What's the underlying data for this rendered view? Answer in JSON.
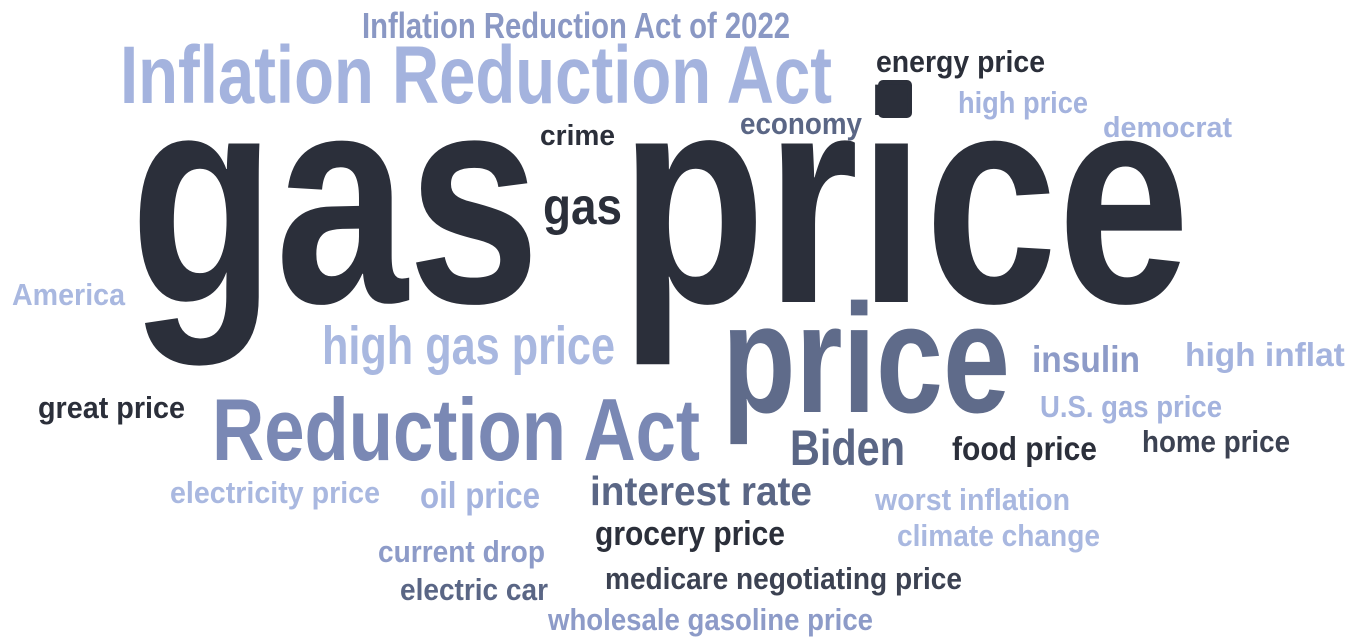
{
  "words": [
    {
      "text": "Inflation Reduction Act of 2022",
      "color": "#8a98c4"
    },
    {
      "text": "Inflation Reduction Act",
      "color": "#a4b3de"
    },
    {
      "text": "energy price",
      "color": "#2b2f3a"
    },
    {
      "text": "high price",
      "color": "#a4b3de"
    },
    {
      "text": "economy",
      "color": "#5a6685"
    },
    {
      "text": "democrat",
      "color": "#a4b3de"
    },
    {
      "text": "crime",
      "color": "#2b2f3a"
    },
    {
      "text": "gas",
      "color": "#2b2f3a"
    },
    {
      "text": "gas",
      "color": "#2b2f3a"
    },
    {
      "text": "price",
      "color": "#2b2f3a"
    },
    {
      "text": "America",
      "color": "#a9b8e0"
    },
    {
      "text": "high gas price",
      "color": "#a9b8e0"
    },
    {
      "text": "price",
      "color": "#5f6b8a"
    },
    {
      "text": "insulin",
      "color": "#8d9bc8"
    },
    {
      "text": "high inflation",
      "color": "#a4b3de"
    },
    {
      "text": "great price",
      "color": "#2b2f3a"
    },
    {
      "text": "U.S. gas price",
      "color": "#a4b3de"
    },
    {
      "text": "Reduction Act",
      "color": "#7a88b4"
    },
    {
      "text": "Biden",
      "color": "#5a6685"
    },
    {
      "text": "food price",
      "color": "#2b2f3a"
    },
    {
      "text": "home price",
      "color": "#3c4252"
    },
    {
      "text": "electricity price",
      "color": "#a9b8e0"
    },
    {
      "text": "oil price",
      "color": "#a4b3de"
    },
    {
      "text": "interest rate",
      "color": "#5a6685"
    },
    {
      "text": "worst inflation",
      "color": "#a9b8e0"
    },
    {
      "text": "grocery price",
      "color": "#2b2f3a"
    },
    {
      "text": "climate change",
      "color": "#a9b8e0"
    },
    {
      "text": "current drop",
      "color": "#8d9bc8"
    },
    {
      "text": "medicare negotiating price",
      "color": "#3c4252"
    },
    {
      "text": "electric car",
      "color": "#5a6685"
    },
    {
      "text": "wholesale gasoline price",
      "color": "#8d9bc8"
    }
  ]
}
